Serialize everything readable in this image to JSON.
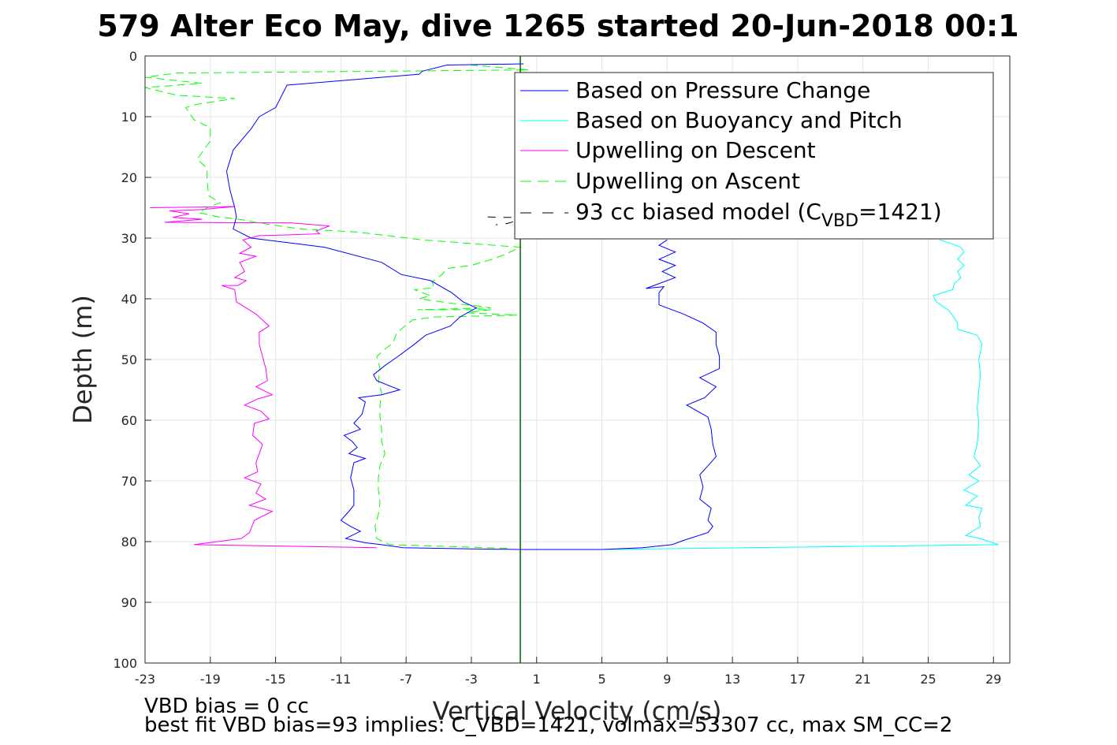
{
  "chart_data": {
    "type": "line",
    "title": "579 Alter Eco May, dive 1265 started 20-Jun-2018 00:1",
    "xlabel": "Vertical Velocity (cm/s)",
    "ylabel": "Depth (m)",
    "xlim": [
      -23,
      30
    ],
    "ylim": [
      0,
      100
    ],
    "y_reversed": true,
    "grid": true,
    "legend_position": "top-right",
    "x_ticks": [
      "-23",
      "-19",
      "-15",
      "-11",
      "-7",
      "-3",
      "1",
      "5",
      "9",
      "13",
      "17",
      "21",
      "25",
      "29"
    ],
    "y_ticks": [
      "0",
      "10",
      "20",
      "30",
      "40",
      "50",
      "60",
      "70",
      "80",
      "90",
      "100"
    ],
    "legend": {
      "pressure": "Based on Pressure Change",
      "buoyancy": "Based on Buoyancy and Pitch",
      "descent": "Upwelling on Descent",
      "ascent": "Upwelling on Ascent",
      "model_prefix": "93 cc biased model (C",
      "model_sub": "VBD",
      "model_suffix": "=1421)"
    },
    "notes": [
      "VBD bias = 0 cc",
      "best fit VBD bias=93 implies: C_VBD=1421, volmax=53307 cc, max SM_CC=2"
    ],
    "colors": {
      "pressure": "#0000ff",
      "buoyancy": "#00ffff",
      "descent": "#ff00ff",
      "ascent": "#00ff00",
      "model": "#000000",
      "vertical_line": "#006400"
    },
    "series": [
      {
        "name": "Based on Pressure Change",
        "key": "pressure",
        "style": "solid",
        "points": [
          [
            0.2,
            1.3
          ],
          [
            -4.5,
            1.5
          ],
          [
            -6,
            2.5
          ],
          [
            -6.2,
            3
          ],
          [
            -14.3,
            4.8
          ],
          [
            -15,
            8.5
          ],
          [
            -16,
            10
          ],
          [
            -16.5,
            12
          ],
          [
            -17.6,
            15.5
          ],
          [
            -18,
            19
          ],
          [
            -17.8,
            22
          ],
          [
            -17.5,
            25
          ],
          [
            -17.4,
            26.5
          ],
          [
            -17.6,
            28.5
          ],
          [
            -16.5,
            30
          ],
          [
            -12,
            31.5
          ],
          [
            -8.5,
            34
          ],
          [
            -7.3,
            36
          ],
          [
            -5.5,
            37
          ],
          [
            -4.2,
            39
          ],
          [
            -3.5,
            40.5
          ],
          [
            -2.7,
            41.5
          ],
          [
            -3.7,
            43
          ],
          [
            -4.3,
            44.5
          ],
          [
            -5.8,
            46
          ],
          [
            -6.5,
            47.5
          ],
          [
            -7.5,
            49.5
          ],
          [
            -8.3,
            51
          ],
          [
            -9,
            52.5
          ],
          [
            -8.8,
            53.5
          ],
          [
            -7.4,
            55
          ],
          [
            -8.5,
            55.8
          ],
          [
            -9.9,
            56.3
          ],
          [
            -9.5,
            57
          ],
          [
            -9.7,
            59
          ],
          [
            -10.2,
            60.5
          ],
          [
            -9.8,
            61.5
          ],
          [
            -10.8,
            62.5
          ],
          [
            -10.3,
            63.5
          ],
          [
            -10,
            64.5
          ],
          [
            -10.5,
            65.5
          ],
          [
            -9.5,
            66.3
          ],
          [
            -10.2,
            67
          ],
          [
            -10.4,
            69.5
          ],
          [
            -10.2,
            71.5
          ],
          [
            -10.2,
            74
          ],
          [
            -10.5,
            75
          ],
          [
            -11,
            76.5
          ],
          [
            -10.4,
            77.5
          ],
          [
            -9.8,
            78.3
          ],
          [
            -10.7,
            79.5
          ],
          [
            -9.5,
            80.2
          ],
          [
            -8.5,
            80.5
          ],
          [
            -7.2,
            81
          ],
          [
            -3,
            81.2
          ],
          [
            0,
            81.3
          ],
          [
            5,
            81.3
          ],
          [
            7.5,
            81
          ],
          [
            9.3,
            80.5
          ],
          [
            10,
            79.8
          ],
          [
            11.5,
            78.5
          ],
          [
            11.8,
            77.5
          ],
          [
            11.5,
            76.5
          ],
          [
            11.7,
            74.5
          ],
          [
            11,
            73
          ],
          [
            11.2,
            71
          ],
          [
            11,
            69
          ],
          [
            11.5,
            67.5
          ],
          [
            12,
            66
          ],
          [
            11.8,
            64
          ],
          [
            11.7,
            61.5
          ],
          [
            11.5,
            59.5
          ],
          [
            10.2,
            57.5
          ],
          [
            11.3,
            56.3
          ],
          [
            12,
            54.5
          ],
          [
            11,
            53
          ],
          [
            12.2,
            51.5
          ],
          [
            12.2,
            49.5
          ],
          [
            12,
            47.5
          ],
          [
            12,
            45.5
          ],
          [
            11.2,
            44
          ],
          [
            10,
            42.5
          ],
          [
            8.5,
            41
          ],
          [
            8.5,
            39
          ],
          [
            8.8,
            38
          ],
          [
            7.7,
            38.3
          ],
          [
            9.5,
            36.5
          ],
          [
            8.7,
            35.5
          ],
          [
            9.5,
            34.5
          ],
          [
            8.5,
            33.5
          ],
          [
            9.5,
            32.3
          ],
          [
            8.5,
            31.2
          ],
          [
            9,
            30.3
          ]
        ]
      },
      {
        "name": "Based on Buoyancy and Pitch",
        "key": "buoyancy",
        "style": "solid",
        "points": [
          [
            1,
            81.3
          ],
          [
            5,
            81.3
          ],
          [
            29.3,
            80.5
          ],
          [
            28.2,
            79.5
          ],
          [
            27.3,
            79
          ],
          [
            28.2,
            77.5
          ],
          [
            28.1,
            76
          ],
          [
            28.3,
            74.5
          ],
          [
            27.3,
            74
          ],
          [
            28,
            72.5
          ],
          [
            27.2,
            71.5
          ],
          [
            28.1,
            70
          ],
          [
            27.5,
            69
          ],
          [
            28.2,
            67.5
          ],
          [
            27.8,
            66
          ],
          [
            28,
            64
          ],
          [
            28.1,
            60.5
          ],
          [
            28,
            58
          ],
          [
            28.1,
            55
          ],
          [
            28.2,
            52.5
          ],
          [
            28.1,
            50
          ],
          [
            28.3,
            47.5
          ],
          [
            28,
            46
          ],
          [
            26.8,
            45
          ],
          [
            26.8,
            44
          ],
          [
            26.3,
            42
          ],
          [
            25.5,
            40.5
          ],
          [
            25.3,
            39.5
          ],
          [
            26.5,
            38.5
          ],
          [
            26.6,
            37.5
          ],
          [
            27,
            36.5
          ],
          [
            26.8,
            35.5
          ],
          [
            27.2,
            34.5
          ],
          [
            26.8,
            33.5
          ],
          [
            27.2,
            32.3
          ],
          [
            27,
            31.5
          ],
          [
            26.5,
            31
          ],
          [
            25.7,
            30.3
          ]
        ]
      },
      {
        "name": "Upwelling on Descent",
        "key": "descent",
        "style": "solid",
        "points": [
          [
            -22.7,
            25
          ],
          [
            -17.5,
            24.8
          ],
          [
            -19.5,
            25.3
          ],
          [
            -21.5,
            25.5
          ],
          [
            -20.3,
            26
          ],
          [
            -21.3,
            26.6
          ],
          [
            -19.5,
            26.9
          ],
          [
            -21.8,
            27.4
          ],
          [
            -14,
            27.5
          ],
          [
            -11.7,
            28
          ],
          [
            -12.5,
            28.8
          ],
          [
            -12.3,
            29.3
          ],
          [
            -14.5,
            29.5
          ],
          [
            -16,
            29.6
          ],
          [
            -17,
            30.3
          ],
          [
            -16.5,
            31.5
          ],
          [
            -17.2,
            32.5
          ],
          [
            -16.2,
            33
          ],
          [
            -17.2,
            34
          ],
          [
            -16.9,
            35.5
          ],
          [
            -17.5,
            36.5
          ],
          [
            -16.8,
            37
          ],
          [
            -17.3,
            37.8
          ],
          [
            -18.3,
            37.8
          ],
          [
            -17.5,
            38.5
          ],
          [
            -17.4,
            40.5
          ],
          [
            -16.8,
            41.5
          ],
          [
            -16.2,
            42.5
          ],
          [
            -15.4,
            44.5
          ],
          [
            -16,
            45.5
          ],
          [
            -16,
            47.5
          ],
          [
            -15.8,
            49.5
          ],
          [
            -15.6,
            51.5
          ],
          [
            -15.5,
            53.5
          ],
          [
            -16.2,
            54.5
          ],
          [
            -15.2,
            55.8
          ],
          [
            -16.1,
            56.5
          ],
          [
            -16.9,
            57.5
          ],
          [
            -15.9,
            58.5
          ],
          [
            -15.4,
            59.8
          ],
          [
            -16.3,
            60.5
          ],
          [
            -16.4,
            62.5
          ],
          [
            -15.8,
            64
          ],
          [
            -16,
            65.5
          ],
          [
            -16.2,
            67
          ],
          [
            -16.1,
            68.5
          ],
          [
            -16.9,
            69.5
          ],
          [
            -15.9,
            70.5
          ],
          [
            -16.2,
            72
          ],
          [
            -15.6,
            73
          ],
          [
            -16.6,
            74
          ],
          [
            -15.2,
            75
          ],
          [
            -16.3,
            76.5
          ],
          [
            -16.6,
            78.5
          ],
          [
            -17.1,
            79.5
          ],
          [
            -20,
            80.5
          ],
          [
            -8.8,
            81
          ]
        ]
      },
      {
        "name": "Upwelling on Ascent",
        "key": "ascent",
        "style": "dashed",
        "points": [
          [
            -0.8,
            81.1
          ],
          [
            -8,
            80.5
          ],
          [
            -8.8,
            79.5
          ],
          [
            -8.9,
            77.5
          ],
          [
            -8.7,
            75.5
          ],
          [
            -8.6,
            73.5
          ],
          [
            -8.7,
            71.5
          ],
          [
            -8.7,
            69.5
          ],
          [
            -8.6,
            67.5
          ],
          [
            -8.3,
            65.5
          ],
          [
            -8.5,
            63.5
          ],
          [
            -8.5,
            61.5
          ],
          [
            -8.6,
            59.5
          ],
          [
            -8.6,
            57.5
          ],
          [
            -8.5,
            55.5
          ],
          [
            -8.7,
            53.5
          ],
          [
            -8.6,
            51.5
          ],
          [
            -8.8,
            49.5
          ],
          [
            -8.3,
            48.3
          ],
          [
            -7.8,
            47.3
          ],
          [
            -7.6,
            45.7
          ],
          [
            -7,
            44.3
          ],
          [
            -6.6,
            43.5
          ],
          [
            -5.3,
            43
          ],
          [
            -0.2,
            42.7
          ],
          [
            -3.3,
            42.3
          ],
          [
            -1.8,
            41.8
          ],
          [
            -6.3,
            41.8
          ],
          [
            -1.8,
            41.5
          ],
          [
            -2.5,
            41.2
          ],
          [
            -4,
            40.8
          ],
          [
            -6.2,
            40
          ],
          [
            -5.5,
            39.5
          ],
          [
            -6.5,
            38.5
          ],
          [
            -5.3,
            38.2
          ],
          [
            -5.4,
            37.2
          ],
          [
            -4.8,
            36
          ],
          [
            -4.5,
            35
          ],
          [
            -3,
            34.5
          ],
          [
            -1.5,
            33.3
          ],
          [
            -0.8,
            32.5
          ],
          [
            0,
            31.5
          ],
          [
            -6,
            30.3
          ],
          [
            -10,
            29
          ],
          [
            -13.5,
            28.5
          ],
          [
            -16,
            27.5
          ],
          [
            -17,
            27
          ],
          [
            -18.5,
            26.5
          ],
          [
            -19.7,
            25.8
          ],
          [
            -19.2,
            25
          ],
          [
            -18.4,
            24.2
          ],
          [
            -19.1,
            23
          ],
          [
            -19.2,
            20.5
          ],
          [
            -19.2,
            18.5
          ],
          [
            -19.8,
            17
          ],
          [
            -19.4,
            15.5
          ],
          [
            -19,
            14
          ],
          [
            -19,
            11.8
          ],
          [
            -19.4,
            11.3
          ],
          [
            -20,
            10.5
          ],
          [
            -20.5,
            8.5
          ],
          [
            -19.9,
            8
          ],
          [
            -17.5,
            7
          ],
          [
            -21,
            6.5
          ],
          [
            -23,
            5.2
          ],
          [
            -19.5,
            4.5
          ],
          [
            -23,
            3.5
          ],
          [
            -21,
            2.8
          ],
          [
            0.5,
            2.3
          ],
          [
            -3,
            1.5
          ]
        ]
      },
      {
        "name": "93 cc biased model (CVBD=1421)",
        "key": "model",
        "style": "dashed",
        "points": [
          [
            -2,
            26.5
          ],
          [
            -1,
            26.6
          ],
          [
            0.2,
            26.6
          ],
          [
            -0.3,
            27.2
          ],
          [
            -0.8,
            27.6
          ],
          [
            -1.5,
            27.8
          ]
        ]
      }
    ]
  }
}
